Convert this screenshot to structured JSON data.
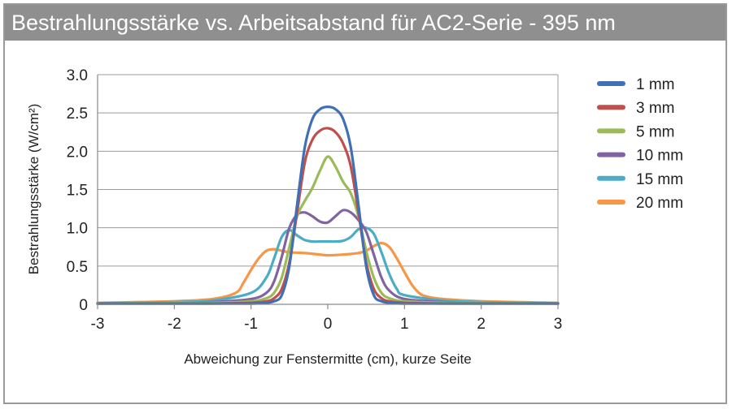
{
  "chart_data": {
    "type": "line",
    "title": "Bestrahlungsstärke vs. Arbeitsabstand für AC2-Serie - 395 nm",
    "xlabel": "Abweichung zur Fenstermitte (cm), kurze Seite",
    "ylabel": "Bestrahlungsstärke (W/cm²)",
    "xlim": [
      -3,
      3
    ],
    "ylim": [
      0,
      3
    ],
    "xticks": [
      -3,
      -2,
      -1,
      0,
      1,
      2,
      3
    ],
    "yticks": [
      0,
      0.5,
      1.0,
      1.5,
      2.0,
      2.5,
      3.0
    ],
    "xtick_labels": [
      "-3",
      "-2",
      "-1",
      "0",
      "1",
      "2",
      "3"
    ],
    "ytick_labels": [
      "0",
      "0.5",
      "1.0",
      "1.5",
      "2.0",
      "2.5",
      "3.0"
    ],
    "grid": "horizontal",
    "legend_position": "right",
    "series": [
      {
        "name": "1 mm",
        "color": "#3f6fb5",
        "x": [
          -3,
          -2,
          -1.5,
          -1,
          -0.8,
          -0.7,
          -0.6,
          -0.5,
          -0.4,
          -0.3,
          -0.2,
          -0.1,
          0,
          0.1,
          0.2,
          0.3,
          0.4,
          0.5,
          0.6,
          0.7,
          0.8,
          1,
          1.5,
          2,
          3
        ],
        "y": [
          0.01,
          0.01,
          0.01,
          0.01,
          0.02,
          0.04,
          0.12,
          0.5,
          1.3,
          2.05,
          2.42,
          2.55,
          2.58,
          2.55,
          2.42,
          2.05,
          1.3,
          0.5,
          0.12,
          0.04,
          0.02,
          0.01,
          0.01,
          0.01,
          0.01
        ]
      },
      {
        "name": "3 mm",
        "color": "#c0504d",
        "x": [
          -3,
          -2,
          -1.5,
          -1,
          -0.8,
          -0.7,
          -0.6,
          -0.5,
          -0.4,
          -0.3,
          -0.2,
          -0.1,
          0,
          0.1,
          0.2,
          0.3,
          0.4,
          0.5,
          0.6,
          0.7,
          0.8,
          1,
          1.5,
          2,
          3
        ],
        "y": [
          0.01,
          0.01,
          0.01,
          0.02,
          0.04,
          0.08,
          0.2,
          0.55,
          1.2,
          1.85,
          2.15,
          2.27,
          2.3,
          2.25,
          2.1,
          1.8,
          1.2,
          0.55,
          0.2,
          0.08,
          0.04,
          0.02,
          0.01,
          0.01,
          0.01
        ]
      },
      {
        "name": "5 mm",
        "color": "#9bbb59",
        "x": [
          -3,
          -2,
          -1.5,
          -1,
          -0.8,
          -0.7,
          -0.6,
          -0.5,
          -0.4,
          -0.3,
          -0.2,
          -0.1,
          0,
          0.1,
          0.2,
          0.3,
          0.4,
          0.5,
          0.6,
          0.7,
          0.8,
          1,
          1.5,
          2,
          3
        ],
        "y": [
          0.01,
          0.02,
          0.02,
          0.04,
          0.08,
          0.15,
          0.35,
          0.75,
          1.15,
          1.35,
          1.52,
          1.75,
          1.93,
          1.8,
          1.6,
          1.45,
          1.15,
          0.7,
          0.35,
          0.15,
          0.08,
          0.04,
          0.02,
          0.02,
          0.01
        ]
      },
      {
        "name": "10 mm",
        "color": "#8064a2",
        "x": [
          -3,
          -2,
          -1.5,
          -1,
          -0.8,
          -0.7,
          -0.6,
          -0.5,
          -0.4,
          -0.3,
          -0.2,
          -0.1,
          0,
          0.1,
          0.2,
          0.3,
          0.4,
          0.5,
          0.6,
          0.7,
          0.8,
          1,
          1.5,
          2,
          3
        ],
        "y": [
          0.01,
          0.02,
          0.03,
          0.07,
          0.15,
          0.3,
          0.62,
          1.0,
          1.17,
          1.2,
          1.15,
          1.08,
          1.07,
          1.15,
          1.23,
          1.2,
          1.1,
          0.95,
          0.65,
          0.35,
          0.18,
          0.07,
          0.03,
          0.02,
          0.01
        ]
      },
      {
        "name": "15 mm",
        "color": "#4bacc6",
        "x": [
          -3,
          -2,
          -1.5,
          -1,
          -0.8,
          -0.7,
          -0.6,
          -0.5,
          -0.4,
          -0.3,
          -0.2,
          -0.1,
          0,
          0.1,
          0.2,
          0.3,
          0.4,
          0.5,
          0.6,
          0.7,
          0.8,
          0.9,
          1,
          1.5,
          2,
          3
        ],
        "y": [
          0.01,
          0.03,
          0.05,
          0.15,
          0.35,
          0.6,
          0.88,
          0.97,
          0.9,
          0.84,
          0.82,
          0.82,
          0.82,
          0.82,
          0.83,
          0.88,
          0.98,
          1.0,
          0.92,
          0.68,
          0.4,
          0.2,
          0.12,
          0.05,
          0.03,
          0.01
        ]
      },
      {
        "name": "20 mm",
        "color": "#f79646",
        "x": [
          -3,
          -2,
          -1.5,
          -1.2,
          -1.1,
          -1,
          -0.9,
          -0.8,
          -0.7,
          -0.6,
          -0.5,
          -0.3,
          -0.1,
          0,
          0.2,
          0.4,
          0.5,
          0.6,
          0.7,
          0.8,
          0.9,
          1,
          1.1,
          1.2,
          1.3,
          1.5,
          2,
          3
        ],
        "y": [
          0.02,
          0.04,
          0.07,
          0.15,
          0.28,
          0.45,
          0.6,
          0.7,
          0.72,
          0.7,
          0.68,
          0.67,
          0.65,
          0.64,
          0.65,
          0.67,
          0.7,
          0.76,
          0.8,
          0.75,
          0.6,
          0.42,
          0.25,
          0.14,
          0.1,
          0.07,
          0.04,
          0.02
        ]
      }
    ]
  }
}
